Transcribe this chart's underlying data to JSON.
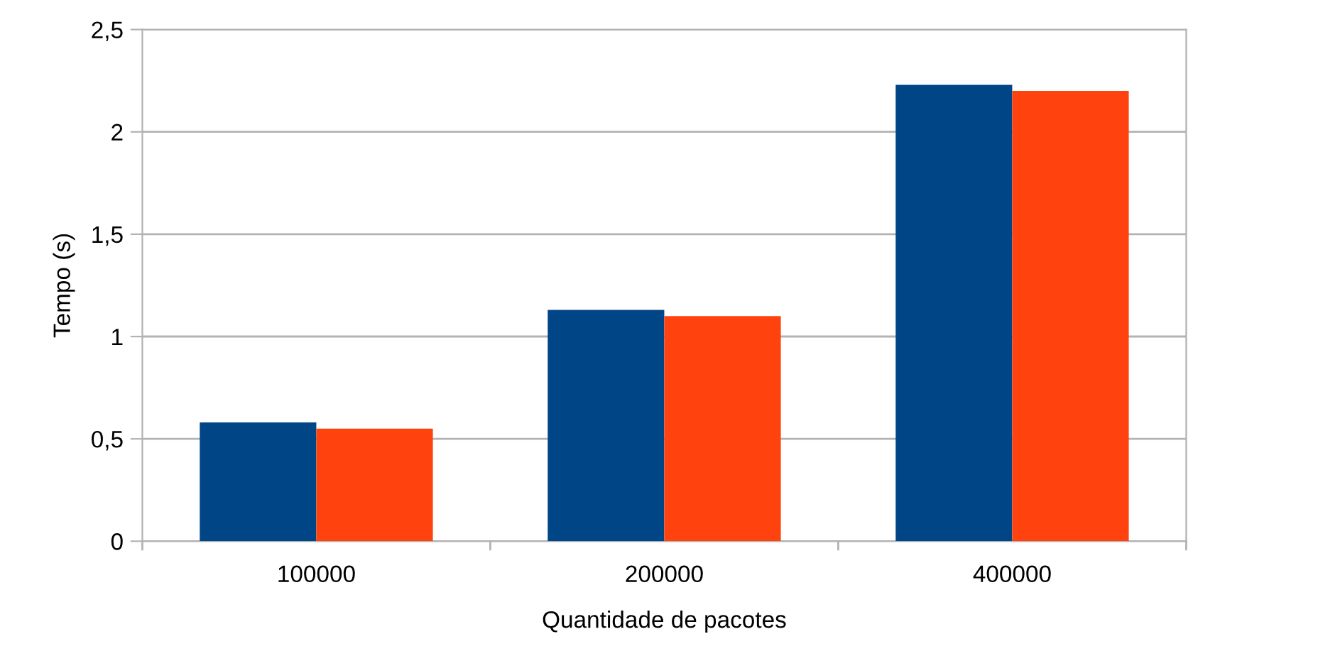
{
  "chart_data": {
    "type": "bar",
    "xlabel": "Quantidade de pacotes",
    "ylabel": "Tempo (s)",
    "categories": [
      "100000",
      "200000",
      "400000"
    ],
    "series": [
      {
        "color": "#004586",
        "values": [
          0.58,
          1.13,
          2.23
        ]
      },
      {
        "color": "#ff420e",
        "values": [
          0.55,
          1.1,
          2.2
        ]
      }
    ],
    "ylim": [
      0,
      2.5
    ],
    "yticks": [
      0,
      {
        "value": 0.5,
        "label": "0,5"
      },
      1,
      {
        "value": 1.5,
        "label": "1,5"
      },
      2,
      {
        "value": 2.5,
        "label": "2,5"
      }
    ],
    "grid": "y"
  }
}
